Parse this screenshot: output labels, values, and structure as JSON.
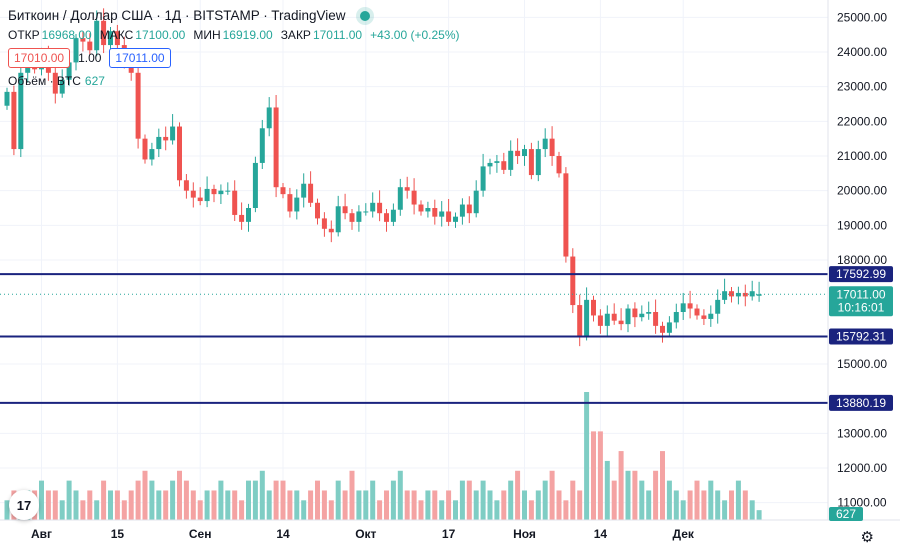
{
  "header": {
    "title": "Биткоин / Доллар США · 1Д · BITSTAMP · TradingView",
    "ohlc": [
      {
        "label": "ОТКР",
        "value": "16968.00"
      },
      {
        "label": "МАКС",
        "value": "17100.00"
      },
      {
        "label": "МИН",
        "value": "16919.00"
      },
      {
        "label": "ЗАКР",
        "value": "17011.00"
      }
    ],
    "change": "+43.00 (+0.25%)",
    "bid": "17010.00",
    "spread": "1.00",
    "ask": "17011.00",
    "volume_label": "Объём · BTC",
    "volume_value": "627"
  },
  "colors": {
    "up": "#26a69a",
    "down": "#ef5350",
    "hline": "#1a237e",
    "price_line": "#26a69a",
    "volume_up": "#7fcdc4",
    "volume_down": "#f4a3a3"
  },
  "icons": {
    "logo": "tradingview-logo-icon",
    "settings": "gear-icon"
  },
  "chart_data": {
    "type": "candlestick",
    "ylim": [
      10500,
      25500
    ],
    "y_ticks": [
      "25000.00",
      "24000.00",
      "23000.00",
      "22000.00",
      "21000.00",
      "20000.00",
      "19000.00",
      "18000.00",
      "15000.00",
      "13000.00",
      "12000.00",
      "11000.00"
    ],
    "x_ticks": [
      "Авг",
      "15",
      "Сен",
      "14",
      "Окт",
      "17",
      "Ноя",
      "14",
      "Дек"
    ],
    "x_tick_index": [
      5,
      16,
      28,
      40,
      52,
      64,
      75,
      86,
      98
    ],
    "horizontal_lines": [
      {
        "value": 17592.99,
        "label": "17592.99"
      },
      {
        "value": 15792.31,
        "label": "15792.31"
      },
      {
        "value": 13880.19,
        "label": "13880.19"
      }
    ],
    "last_price": {
      "value": 17011.0,
      "label": "17011.00",
      "countdown": "10:16:01"
    },
    "volume_badge": "627",
    "close": [
      22850,
      21200,
      23400,
      23600,
      23500,
      24000,
      23400,
      22800,
      23200,
      23700,
      24400,
      24300,
      24050,
      24900,
      24200,
      24600,
      24200,
      23700,
      23400,
      21500,
      20900,
      21200,
      21550,
      21450,
      21850,
      20300,
      20000,
      19800,
      19700,
      20050,
      19900,
      20000,
      20000,
      19300,
      19100,
      19500,
      20800,
      21800,
      22400,
      20100,
      19900,
      19400,
      19800,
      20200,
      19650,
      19200,
      18900,
      18800,
      19550,
      19350,
      19100,
      19400,
      19400,
      19650,
      19350,
      19100,
      19450,
      20100,
      20000,
      19600,
      19400,
      19500,
      19250,
      19400,
      19100,
      19250,
      19600,
      19350,
      20000,
      20700,
      20800,
      20850,
      20600,
      21150,
      21000,
      21200,
      20450,
      21200,
      21500,
      21000,
      20500,
      18100,
      16700,
      15800,
      16850,
      16400,
      16100,
      16450,
      16250,
      16150,
      16600,
      16350,
      16450,
      16500,
      16100,
      15900,
      16200,
      16500,
      16750,
      16600,
      16400,
      16300,
      16450,
      16850,
      17100,
      16950,
      17050,
      16950,
      17100,
      17011
    ],
    "volume": [
      2,
      3,
      2,
      3,
      3,
      4,
      3,
      3,
      2,
      4,
      3,
      2,
      3,
      2,
      4,
      3,
      3,
      2,
      3,
      4,
      5,
      4,
      3,
      3,
      4,
      5,
      4,
      3,
      2,
      3,
      3,
      4,
      3,
      3,
      2,
      4,
      4,
      5,
      3,
      4,
      4,
      3,
      3,
      2,
      3,
      4,
      3,
      2,
      4,
      3,
      5,
      3,
      3,
      4,
      2,
      3,
      4,
      5,
      3,
      3,
      2,
      3,
      3,
      2,
      3,
      2,
      4,
      4,
      3,
      4,
      3,
      2,
      3,
      4,
      5,
      3,
      2,
      3,
      4,
      5,
      3,
      2,
      4,
      3,
      13,
      9,
      9,
      6,
      4,
      7,
      5,
      5,
      4,
      3,
      5,
      7,
      4,
      3,
      2,
      3,
      4,
      3,
      4,
      3,
      2,
      3,
      4,
      3,
      2,
      1
    ]
  }
}
